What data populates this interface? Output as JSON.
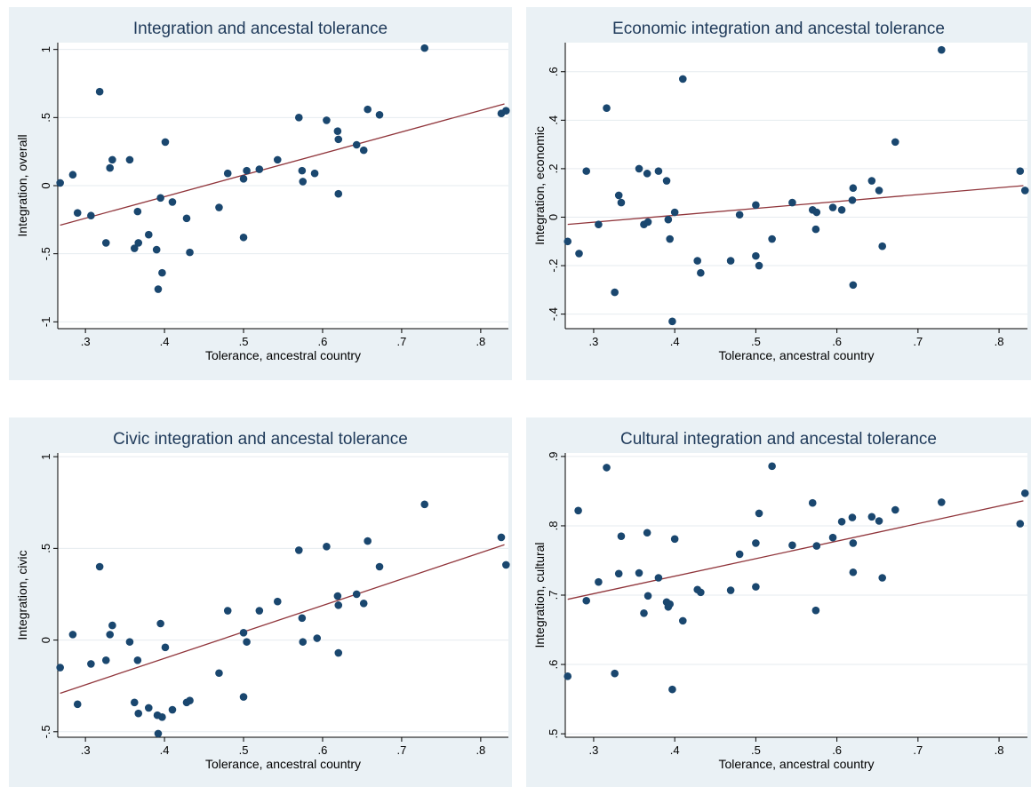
{
  "colors": {
    "panel_bg": "#eaf1f5",
    "plot_bg": "#ffffff",
    "grid": "#e6ebef",
    "point": "#1a476f",
    "fit_line": "#90353b",
    "title": "#1f3a5a"
  },
  "chart_data": [
    {
      "type": "scatter",
      "title": "Integration and ancestal tolerance",
      "xlabel": "Tolerance, ancestral country",
      "ylabel": "Integration, overall",
      "xlim": [
        0.265,
        0.835
      ],
      "ylim": [
        -1.05,
        1.05
      ],
      "xticks": [
        0.3,
        0.4,
        0.5,
        0.6,
        0.7,
        0.8
      ],
      "xtick_labels": [
        ".3",
        ".4",
        ".5",
        ".6",
        ".7",
        ".8"
      ],
      "yticks": [
        -1,
        -0.5,
        0,
        0.5,
        1
      ],
      "ytick_labels": [
        "-1",
        "-.5",
        "0",
        ".5",
        "1"
      ],
      "grid": true,
      "fit_line": [
        [
          0.268,
          -0.29
        ],
        [
          0.83,
          0.6
        ]
      ],
      "points": [
        [
          0.268,
          0.02
        ],
        [
          0.284,
          0.08
        ],
        [
          0.29,
          -0.2
        ],
        [
          0.307,
          -0.22
        ],
        [
          0.318,
          0.69
        ],
        [
          0.326,
          -0.42
        ],
        [
          0.331,
          0.13
        ],
        [
          0.334,
          0.19
        ],
        [
          0.356,
          0.19
        ],
        [
          0.362,
          -0.46
        ],
        [
          0.366,
          -0.19
        ],
        [
          0.367,
          -0.42
        ],
        [
          0.38,
          -0.36
        ],
        [
          0.39,
          -0.47
        ],
        [
          0.392,
          -0.76
        ],
        [
          0.395,
          -0.09
        ],
        [
          0.397,
          -0.64
        ],
        [
          0.401,
          0.32
        ],
        [
          0.41,
          -0.12
        ],
        [
          0.428,
          -0.24
        ],
        [
          0.432,
          -0.49
        ],
        [
          0.469,
          -0.16
        ],
        [
          0.48,
          0.09
        ],
        [
          0.5,
          -0.38
        ],
        [
          0.5,
          0.05
        ],
        [
          0.504,
          0.11
        ],
        [
          0.52,
          0.12
        ],
        [
          0.543,
          0.19
        ],
        [
          0.57,
          0.5
        ],
        [
          0.574,
          0.11
        ],
        [
          0.575,
          0.03
        ],
        [
          0.59,
          0.09
        ],
        [
          0.605,
          0.48
        ],
        [
          0.619,
          0.4
        ],
        [
          0.62,
          0.34
        ],
        [
          0.62,
          -0.06
        ],
        [
          0.643,
          0.3
        ],
        [
          0.652,
          0.26
        ],
        [
          0.657,
          0.56
        ],
        [
          0.672,
          0.52
        ],
        [
          0.729,
          1.01
        ],
        [
          0.826,
          0.53
        ],
        [
          0.832,
          0.55
        ]
      ]
    },
    {
      "type": "scatter",
      "title": "Economic integration and ancestal tolerance",
      "xlabel": "Tolerance, ancestral country",
      "ylabel": "Integration, economic",
      "xlim": [
        0.265,
        0.835
      ],
      "ylim": [
        -0.46,
        0.72
      ],
      "xticks": [
        0.3,
        0.4,
        0.5,
        0.6,
        0.7,
        0.8
      ],
      "xtick_labels": [
        ".3",
        ".4",
        ".5",
        ".6",
        ".7",
        ".8"
      ],
      "yticks": [
        -0.4,
        -0.2,
        0,
        0.2,
        0.4,
        0.6
      ],
      "ytick_labels": [
        "-.4",
        "-.2",
        "0",
        ".2",
        ".4",
        ".6"
      ],
      "grid": true,
      "fit_line": [
        [
          0.268,
          -0.03
        ],
        [
          0.83,
          0.13
        ]
      ],
      "points": [
        [
          0.268,
          -0.1
        ],
        [
          0.282,
          -0.15
        ],
        [
          0.291,
          0.19
        ],
        [
          0.306,
          -0.03
        ],
        [
          0.316,
          0.45
        ],
        [
          0.326,
          -0.31
        ],
        [
          0.331,
          0.09
        ],
        [
          0.334,
          0.06
        ],
        [
          0.356,
          0.2
        ],
        [
          0.362,
          -0.03
        ],
        [
          0.366,
          0.18
        ],
        [
          0.367,
          -0.02
        ],
        [
          0.38,
          0.19
        ],
        [
          0.39,
          0.15
        ],
        [
          0.392,
          -0.01
        ],
        [
          0.394,
          -0.09
        ],
        [
          0.397,
          -0.43
        ],
        [
          0.4,
          0.02
        ],
        [
          0.41,
          0.57
        ],
        [
          0.428,
          -0.18
        ],
        [
          0.432,
          -0.23
        ],
        [
          0.469,
          -0.18
        ],
        [
          0.48,
          0.01
        ],
        [
          0.5,
          0.05
        ],
        [
          0.5,
          -0.16
        ],
        [
          0.504,
          -0.2
        ],
        [
          0.52,
          -0.09
        ],
        [
          0.545,
          0.06
        ],
        [
          0.57,
          0.03
        ],
        [
          0.574,
          -0.05
        ],
        [
          0.575,
          0.02
        ],
        [
          0.595,
          0.04
        ],
        [
          0.606,
          0.03
        ],
        [
          0.619,
          0.07
        ],
        [
          0.62,
          0.12
        ],
        [
          0.62,
          -0.28
        ],
        [
          0.643,
          0.15
        ],
        [
          0.652,
          0.11
        ],
        [
          0.656,
          -0.12
        ],
        [
          0.672,
          0.31
        ],
        [
          0.729,
          0.69
        ],
        [
          0.826,
          0.19
        ],
        [
          0.832,
          0.11
        ]
      ]
    },
    {
      "type": "scatter",
      "title": "Civic integration and ancestal tolerance",
      "xlabel": "Tolerance, ancestral country",
      "ylabel": "Integration, civic",
      "xlim": [
        0.265,
        0.835
      ],
      "ylim": [
        -0.53,
        1.02
      ],
      "xticks": [
        0.3,
        0.4,
        0.5,
        0.6,
        0.7,
        0.8
      ],
      "xtick_labels": [
        ".3",
        ".4",
        ".5",
        ".6",
        ".7",
        ".8"
      ],
      "yticks": [
        -0.5,
        0,
        0.5,
        1
      ],
      "ytick_labels": [
        "-.5",
        "0",
        ".5",
        "1"
      ],
      "grid": true,
      "fit_line": [
        [
          0.268,
          -0.29
        ],
        [
          0.83,
          0.52
        ]
      ],
      "points": [
        [
          0.268,
          -0.15
        ],
        [
          0.284,
          0.03
        ],
        [
          0.29,
          -0.35
        ],
        [
          0.307,
          -0.13
        ],
        [
          0.318,
          0.4
        ],
        [
          0.326,
          -0.11
        ],
        [
          0.331,
          0.03
        ],
        [
          0.334,
          0.08
        ],
        [
          0.356,
          -0.01
        ],
        [
          0.362,
          -0.34
        ],
        [
          0.366,
          -0.11
        ],
        [
          0.367,
          -0.4
        ],
        [
          0.38,
          -0.37
        ],
        [
          0.391,
          -0.41
        ],
        [
          0.392,
          -0.51
        ],
        [
          0.395,
          0.09
        ],
        [
          0.397,
          -0.42
        ],
        [
          0.401,
          -0.04
        ],
        [
          0.41,
          -0.38
        ],
        [
          0.428,
          -0.34
        ],
        [
          0.432,
          -0.33
        ],
        [
          0.469,
          -0.18
        ],
        [
          0.48,
          0.16
        ],
        [
          0.5,
          -0.31
        ],
        [
          0.5,
          0.04
        ],
        [
          0.504,
          -0.01
        ],
        [
          0.52,
          0.16
        ],
        [
          0.543,
          0.21
        ],
        [
          0.57,
          0.49
        ],
        [
          0.574,
          0.12
        ],
        [
          0.575,
          -0.01
        ],
        [
          0.593,
          0.01
        ],
        [
          0.605,
          0.51
        ],
        [
          0.619,
          0.24
        ],
        [
          0.62,
          0.19
        ],
        [
          0.62,
          -0.07
        ],
        [
          0.643,
          0.25
        ],
        [
          0.652,
          0.2
        ],
        [
          0.657,
          0.54
        ],
        [
          0.672,
          0.4
        ],
        [
          0.729,
          0.74
        ],
        [
          0.826,
          0.56
        ],
        [
          0.832,
          0.41
        ]
      ]
    },
    {
      "type": "scatter",
      "title": "Cultural integration and ancestal tolerance",
      "xlabel": "Tolerance, ancestral country",
      "ylabel": "Integration, cultural",
      "xlim": [
        0.265,
        0.835
      ],
      "ylim": [
        0.495,
        0.905
      ],
      "xticks": [
        0.3,
        0.4,
        0.5,
        0.6,
        0.7,
        0.8
      ],
      "xtick_labels": [
        ".3",
        ".4",
        ".5",
        ".6",
        ".7",
        ".8"
      ],
      "yticks": [
        0.5,
        0.6,
        0.7,
        0.8,
        0.9
      ],
      "ytick_labels": [
        ".5",
        ".6",
        ".7",
        ".8",
        ".9"
      ],
      "grid": true,
      "fit_line": [
        [
          0.268,
          0.694
        ],
        [
          0.83,
          0.836
        ]
      ],
      "points": [
        [
          0.268,
          0.583
        ],
        [
          0.281,
          0.822
        ],
        [
          0.291,
          0.692
        ],
        [
          0.306,
          0.719
        ],
        [
          0.316,
          0.884
        ],
        [
          0.326,
          0.587
        ],
        [
          0.331,
          0.731
        ],
        [
          0.334,
          0.785
        ],
        [
          0.356,
          0.732
        ],
        [
          0.362,
          0.674
        ],
        [
          0.366,
          0.79
        ],
        [
          0.367,
          0.699
        ],
        [
          0.38,
          0.725
        ],
        [
          0.39,
          0.69
        ],
        [
          0.392,
          0.683
        ],
        [
          0.394,
          0.687
        ],
        [
          0.397,
          0.564
        ],
        [
          0.4,
          0.781
        ],
        [
          0.41,
          0.663
        ],
        [
          0.428,
          0.708
        ],
        [
          0.432,
          0.704
        ],
        [
          0.469,
          0.707
        ],
        [
          0.48,
          0.759
        ],
        [
          0.5,
          0.775
        ],
        [
          0.5,
          0.712
        ],
        [
          0.504,
          0.818
        ],
        [
          0.52,
          0.886
        ],
        [
          0.545,
          0.772
        ],
        [
          0.57,
          0.833
        ],
        [
          0.574,
          0.678
        ],
        [
          0.575,
          0.771
        ],
        [
          0.595,
          0.783
        ],
        [
          0.606,
          0.806
        ],
        [
          0.619,
          0.812
        ],
        [
          0.62,
          0.775
        ],
        [
          0.62,
          0.733
        ],
        [
          0.643,
          0.813
        ],
        [
          0.652,
          0.807
        ],
        [
          0.656,
          0.725
        ],
        [
          0.672,
          0.823
        ],
        [
          0.729,
          0.834
        ],
        [
          0.826,
          0.803
        ],
        [
          0.832,
          0.847
        ]
      ]
    }
  ]
}
